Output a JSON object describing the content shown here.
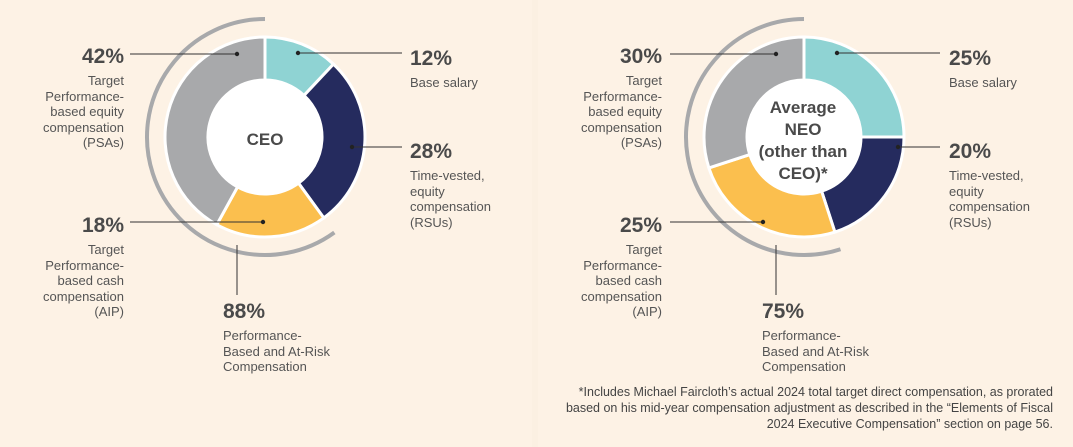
{
  "chart_data": [
    {
      "type": "pie",
      "style": "donut",
      "title": "CEO",
      "categories": [
        "Base salary",
        "Time-vested, equity compensation (RSUs)",
        "Target Performance-based cash compensation (AIP)",
        "Target Performance-based equity compensation (PSAs)"
      ],
      "values": [
        12,
        28,
        18,
        42
      ],
      "labels": [
        {
          "pct": "12%",
          "desc": "Base salary"
        },
        {
          "pct": "28%",
          "desc": "Time-vested,\nequity\ncompensation\n(RSUs)"
        },
        {
          "pct": "18%",
          "desc": "Target\nPerformance-\nbased cash\ncompensation\n(AIP)"
        },
        {
          "pct": "42%",
          "desc": "Target\nPerformance-\nbased equity\ncompensation\n(PSAs)"
        }
      ],
      "colors": [
        "#8fd3d3",
        "#252b5e",
        "#fbbf4e",
        "#a8a9ab"
      ],
      "summary": {
        "pct": "88%",
        "desc": "Performance-\nBased and At-Risk\nCompensation",
        "value": 88
      }
    },
    {
      "type": "pie",
      "style": "donut",
      "title": "Average\nNEO\n(other than\nCEO)*",
      "categories": [
        "Base salary",
        "Time-vested, equity compensation (RSUs)",
        "Target Performance-based cash compensation (AIP)",
        "Target Performance-based equity compensation (PSAs)"
      ],
      "values": [
        25,
        20,
        25,
        30
      ],
      "labels": [
        {
          "pct": "25%",
          "desc": "Base salary"
        },
        {
          "pct": "20%",
          "desc": "Time-vested,\nequity\ncompensation\n(RSUs)"
        },
        {
          "pct": "25%",
          "desc": "Target\nPerformance-\nbased cash\ncompensation\n(AIP)"
        },
        {
          "pct": "30%",
          "desc": "Target\nPerformance-\nbased equity\ncompensation\n(PSAs)"
        }
      ],
      "colors": [
        "#8fd3d3",
        "#252b5e",
        "#fbbf4e",
        "#a8a9ab"
      ],
      "summary": {
        "pct": "75%",
        "desc": "Performance-\nBased and At-Risk\nCompensation",
        "value": 75
      }
    }
  ],
  "footnote": "*Includes Michael Faircloth’s actual 2024 total target direct compensation, as prorated based on his mid-year compensation adjustment as described in the “Elements of Fiscal 2024 Executive Compensation” section on page 56."
}
